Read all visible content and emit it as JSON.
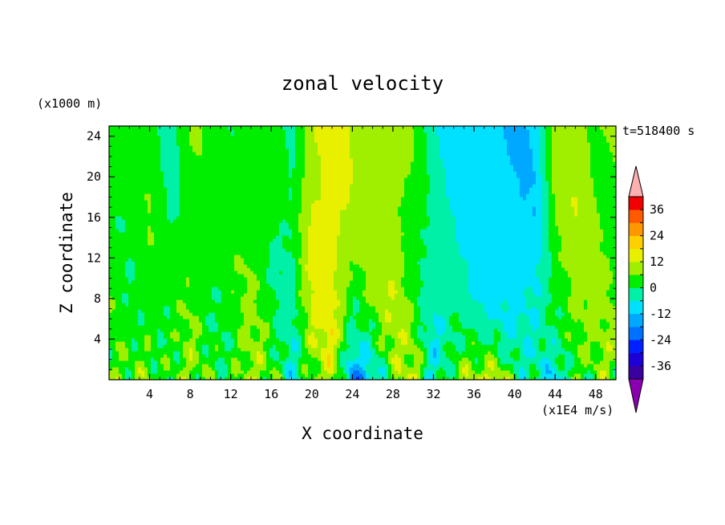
{
  "chart_data": {
    "type": "heatmap",
    "title": "zonal velocity",
    "xlabel": "X coordinate",
    "ylabel": "Z coordinate",
    "x_unit_label": "(x1E4 m/s)",
    "y_unit_label": "(x1000 m)",
    "time_label": "t=518400 s",
    "xlim": [
      0,
      50
    ],
    "ylim": [
      0,
      25
    ],
    "x_ticks": [
      4,
      8,
      12,
      16,
      20,
      24,
      28,
      32,
      36,
      40,
      44,
      48
    ],
    "y_ticks": [
      4,
      8,
      12,
      16,
      20,
      24
    ],
    "colorbar": {
      "tick_values": [
        36,
        24,
        12,
        0,
        -12,
        -24,
        -36
      ],
      "levels": [
        -42,
        -36,
        -30,
        -24,
        -18,
        -12,
        -6,
        0,
        6,
        12,
        18,
        24,
        30,
        36,
        42
      ],
      "colors": [
        "#8a00b0",
        "#3a00a0",
        "#1d00d5",
        "#0020ff",
        "#0070ff",
        "#00a8ff",
        "#00e0ff",
        "#00f0a8",
        "#00ee00",
        "#a0ee00",
        "#e8f000",
        "#ffd000",
        "#ff9800",
        "#ff5a00",
        "#f00000",
        "#ffb0b0"
      ],
      "extend": "both"
    },
    "z_description_values": {
      "x_samples": [
        0,
        2,
        4,
        6,
        8,
        10,
        12,
        14,
        16,
        18,
        20,
        22,
        24,
        26,
        28,
        30,
        32,
        34,
        36,
        38,
        40,
        42,
        44,
        46,
        48,
        50
      ],
      "upper_layer_u": [
        3,
        2,
        4,
        -1,
        5,
        3,
        2,
        5,
        2,
        -2,
        13,
        16,
        10,
        9,
        11,
        4,
        -4,
        -7,
        -10,
        -11,
        -12,
        -10,
        8,
        10,
        7,
        6
      ],
      "lower_layer_u": [
        2,
        3,
        8,
        4,
        6,
        2,
        5,
        9,
        3,
        -4,
        6,
        9,
        -20,
        -8,
        5,
        10,
        -6,
        8,
        9,
        14,
        6,
        -4,
        -14,
        5,
        7,
        4
      ]
    }
  }
}
